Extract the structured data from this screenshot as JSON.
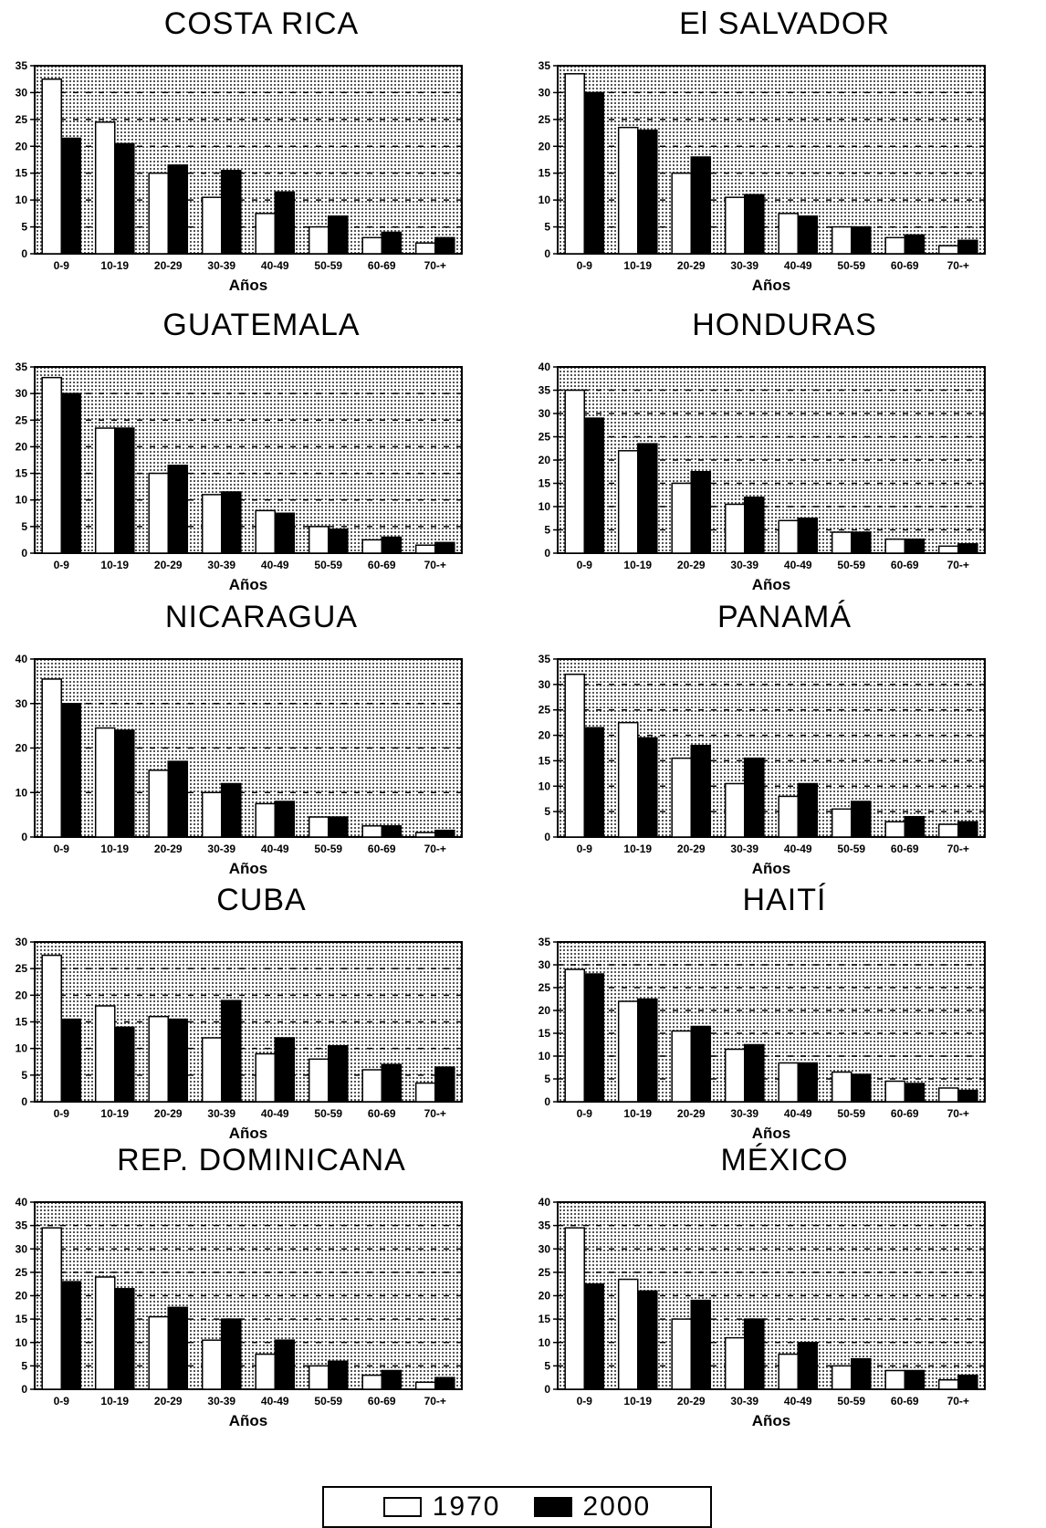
{
  "legend": {
    "items": [
      {
        "label": "1970",
        "color": "#ffffff"
      },
      {
        "label": "2000",
        "color": "#000000"
      }
    ]
  },
  "colors": {
    "plot_background": "#d0d0d0",
    "bar_1970": "#ffffff",
    "bar_2000": "#000000"
  },
  "chart_data": [
    {
      "type": "bar",
      "title": "COSTA RICA",
      "xlabel": "Años",
      "ylabel": "",
      "categories": [
        "0-9",
        "10-19",
        "20-29",
        "30-39",
        "40-49",
        "50-59",
        "60-69",
        "70-+"
      ],
      "ylim": [
        0,
        35
      ],
      "yticks": [
        0,
        5,
        10,
        15,
        20,
        25,
        30,
        35
      ],
      "series": [
        {
          "name": "1970",
          "values": [
            32.5,
            24.5,
            15,
            10.5,
            7.5,
            5,
            3,
            2
          ]
        },
        {
          "name": "2000",
          "values": [
            21.5,
            20.5,
            16.5,
            15.5,
            11.5,
            7,
            4,
            3
          ]
        }
      ]
    },
    {
      "type": "bar",
      "title": "El SALVADOR",
      "xlabel": "Años",
      "ylabel": "",
      "categories": [
        "0-9",
        "10-19",
        "20-29",
        "30-39",
        "40-49",
        "50-59",
        "60-69",
        "70-+"
      ],
      "ylim": [
        0,
        35
      ],
      "yticks": [
        0,
        5,
        10,
        15,
        20,
        25,
        30,
        35
      ],
      "series": [
        {
          "name": "1970",
          "values": [
            33.5,
            23.5,
            15,
            10.5,
            7.5,
            5,
            3,
            1.5
          ]
        },
        {
          "name": "2000",
          "values": [
            30,
            23,
            18,
            11,
            7,
            5,
            3.5,
            2.5
          ]
        }
      ]
    },
    {
      "type": "bar",
      "title": "GUATEMALA",
      "xlabel": "Años",
      "ylabel": "",
      "categories": [
        "0-9",
        "10-19",
        "20-29",
        "30-39",
        "40-49",
        "50-59",
        "60-69",
        "70-+"
      ],
      "ylim": [
        0,
        35
      ],
      "yticks": [
        0,
        5,
        10,
        15,
        20,
        25,
        30,
        35
      ],
      "series": [
        {
          "name": "1970",
          "values": [
            33,
            23.5,
            15,
            11,
            8,
            5,
            2.5,
            1.5
          ]
        },
        {
          "name": "2000",
          "values": [
            30,
            23.5,
            16.5,
            11.5,
            7.5,
            4.5,
            3,
            2
          ]
        }
      ]
    },
    {
      "type": "bar",
      "title": "HONDURAS",
      "xlabel": "Años",
      "ylabel": "",
      "categories": [
        "0-9",
        "10-19",
        "20-29",
        "30-39",
        "40-49",
        "50-59",
        "60-69",
        "70-+"
      ],
      "ylim": [
        0,
        40
      ],
      "yticks": [
        0,
        5,
        10,
        15,
        20,
        25,
        30,
        35,
        40
      ],
      "series": [
        {
          "name": "1970",
          "values": [
            35,
            22,
            15,
            10.5,
            7,
            4.5,
            3,
            1.5
          ]
        },
        {
          "name": "2000",
          "values": [
            29,
            23.5,
            17.5,
            12,
            7.5,
            4.5,
            3,
            2
          ]
        }
      ]
    },
    {
      "type": "bar",
      "title": "NICARAGUA",
      "xlabel": "Años",
      "ylabel": "",
      "categories": [
        "0-9",
        "10-19",
        "20-29",
        "30-39",
        "40-49",
        "50-59",
        "60-69",
        "70-+"
      ],
      "ylim": [
        0,
        40
      ],
      "yticks": [
        0,
        10,
        20,
        30,
        40
      ],
      "series": [
        {
          "name": "1970",
          "values": [
            35.5,
            24.5,
            15,
            10,
            7.5,
            4.5,
            2.5,
            1
          ]
        },
        {
          "name": "2000",
          "values": [
            30,
            24,
            17,
            12,
            8,
            4.5,
            2.5,
            1.5
          ]
        }
      ]
    },
    {
      "type": "bar",
      "title": "PANAMÁ",
      "xlabel": "Años",
      "ylabel": "",
      "categories": [
        "0-9",
        "10-19",
        "20-29",
        "30-39",
        "40-49",
        "50-59",
        "60-69",
        "70-+"
      ],
      "ylim": [
        0,
        35
      ],
      "yticks": [
        0,
        5,
        10,
        15,
        20,
        25,
        30,
        35
      ],
      "series": [
        {
          "name": "1970",
          "values": [
            32,
            22.5,
            15.5,
            10.5,
            8,
            5.5,
            3,
            2.5
          ]
        },
        {
          "name": "2000",
          "values": [
            21.5,
            19.5,
            18,
            15.5,
            10.5,
            7,
            4,
            3
          ]
        }
      ]
    },
    {
      "type": "bar",
      "title": "CUBA",
      "xlabel": "Años",
      "ylabel": "",
      "categories": [
        "0-9",
        "10-19",
        "20-29",
        "30-39",
        "40-49",
        "50-59",
        "60-69",
        "70-+"
      ],
      "ylim": [
        0,
        30
      ],
      "yticks": [
        0,
        5,
        10,
        15,
        20,
        25,
        30
      ],
      "series": [
        {
          "name": "1970",
          "values": [
            27.5,
            18,
            16,
            12,
            9,
            8,
            6,
            3.5
          ]
        },
        {
          "name": "2000",
          "values": [
            15.5,
            14,
            15.5,
            19,
            12,
            10.5,
            7,
            6.5
          ]
        }
      ]
    },
    {
      "type": "bar",
      "title": "HAITÍ",
      "xlabel": "Años",
      "ylabel": "",
      "categories": [
        "0-9",
        "10-19",
        "20-29",
        "30-39",
        "40-49",
        "50-59",
        "60-69",
        "70-+"
      ],
      "ylim": [
        0,
        35
      ],
      "yticks": [
        0,
        5,
        10,
        15,
        20,
        25,
        30,
        35
      ],
      "series": [
        {
          "name": "1970",
          "values": [
            29,
            22,
            15.5,
            11.5,
            8.5,
            6.5,
            4.5,
            3
          ]
        },
        {
          "name": "2000",
          "values": [
            28,
            22.5,
            16.5,
            12.5,
            8.5,
            6,
            4,
            2.5
          ]
        }
      ]
    },
    {
      "type": "bar",
      "title": "REP. DOMINICANA",
      "xlabel": "Años",
      "ylabel": "",
      "categories": [
        "0-9",
        "10-19",
        "20-29",
        "30-39",
        "40-49",
        "50-59",
        "60-69",
        "70-+"
      ],
      "ylim": [
        0,
        40
      ],
      "yticks": [
        0,
        5,
        10,
        15,
        20,
        25,
        30,
        35,
        40
      ],
      "series": [
        {
          "name": "1970",
          "values": [
            34.5,
            24,
            15.5,
            10.5,
            7.5,
            5,
            3,
            1.5
          ]
        },
        {
          "name": "2000",
          "values": [
            23,
            21.5,
            17.5,
            15,
            10.5,
            6,
            4,
            2.5
          ]
        }
      ]
    },
    {
      "type": "bar",
      "title": "MÉXICO",
      "xlabel": "Años",
      "ylabel": "",
      "categories": [
        "0-9",
        "10-19",
        "20-29",
        "30-39",
        "40-49",
        "50-59",
        "60-69",
        "70-+"
      ],
      "ylim": [
        0,
        40
      ],
      "yticks": [
        0,
        5,
        10,
        15,
        20,
        25,
        30,
        35,
        40
      ],
      "series": [
        {
          "name": "1970",
          "values": [
            34.5,
            23.5,
            15,
            11,
            7.5,
            5,
            4,
            2
          ]
        },
        {
          "name": "2000",
          "values": [
            22.5,
            21,
            19,
            15,
            10,
            6.5,
            4,
            3
          ]
        }
      ]
    }
  ]
}
